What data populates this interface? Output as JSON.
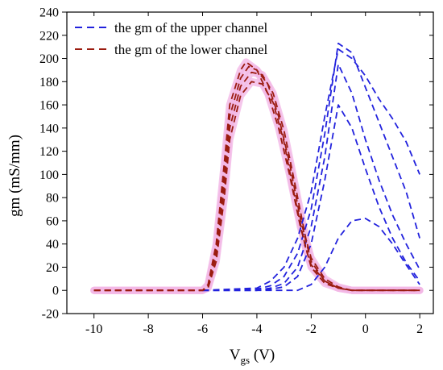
{
  "chart_data": {
    "type": "line",
    "title": "",
    "xlabel_main": "V",
    "xlabel_sub": "gs",
    "xlabel_unit": " (V)",
    "ylabel": "gm (mS/mm)",
    "xlim": [
      -11,
      2.5
    ],
    "ylim": [
      -20,
      240
    ],
    "xticks": [
      -10,
      -8,
      -6,
      -4,
      -2,
      0,
      2
    ],
    "yticks": [
      -20,
      0,
      20,
      40,
      60,
      80,
      100,
      120,
      140,
      160,
      180,
      200,
      220,
      240
    ],
    "grid": false,
    "legend_position": "top-center",
    "colors": {
      "upper": "#2222dd",
      "lower": "#9b1c10",
      "halo": "#f2b8e6"
    },
    "series": [
      {
        "name": "the gm of the upper channel",
        "group": "upper",
        "in_legend": true,
        "x": [
          -6,
          -4,
          -3.5,
          -3,
          -2.5,
          -2,
          -1.5,
          -1,
          -0.5,
          0,
          0.5,
          1,
          1.5,
          2
        ],
        "y": [
          0,
          2,
          8,
          20,
          45,
          85,
          150,
          208,
          200,
          185,
          165,
          148,
          128,
          100
        ]
      },
      {
        "name": "",
        "group": "upper",
        "in_legend": false,
        "x": [
          -6,
          -4,
          -3.5,
          -3,
          -2.5,
          -2,
          -1.5,
          -1,
          -0.5,
          0,
          0.5,
          1,
          1.5,
          2
        ],
        "y": [
          0,
          1,
          4,
          12,
          32,
          70,
          135,
          213,
          205,
          175,
          145,
          115,
          85,
          45
        ]
      },
      {
        "name": "",
        "group": "upper",
        "in_legend": false,
        "x": [
          -6,
          -4,
          -3.5,
          -3,
          -2.5,
          -2,
          -1.5,
          -1,
          -0.5,
          0,
          0.5,
          1,
          1.5,
          2
        ],
        "y": [
          0,
          0,
          2,
          6,
          20,
          55,
          115,
          195,
          170,
          130,
          95,
          65,
          40,
          18
        ]
      },
      {
        "name": "",
        "group": "upper",
        "in_legend": false,
        "x": [
          -6,
          -4,
          -3.5,
          -3,
          -2.5,
          -2,
          -1.5,
          -1,
          -0.5,
          0,
          0.5,
          1,
          1.5,
          2
        ],
        "y": [
          0,
          0,
          1,
          3,
          12,
          40,
          95,
          160,
          140,
          105,
          72,
          45,
          24,
          8
        ]
      },
      {
        "name": "",
        "group": "upper",
        "in_legend": false,
        "x": [
          -6,
          -3,
          -2.5,
          -2,
          -1.5,
          -1,
          -0.5,
          0,
          0.5,
          1,
          1.5,
          2
        ],
        "y": [
          0,
          0,
          0,
          5,
          20,
          45,
          60,
          62,
          55,
          40,
          22,
          5
        ]
      },
      {
        "name": "the gm of the lower channel",
        "group": "lower",
        "in_legend": true,
        "x": [
          -10,
          -6,
          -5.8,
          -5.5,
          -5.2,
          -5,
          -4.6,
          -4.4,
          -4,
          -3.6,
          -3.2,
          -2.8,
          -2.4,
          -2,
          -1.5,
          -1,
          -0.5,
          0,
          2
        ],
        "y": [
          0,
          0,
          5,
          40,
          110,
          160,
          190,
          197,
          190,
          170,
          140,
          100,
          55,
          20,
          6,
          2,
          0,
          0,
          0
        ]
      },
      {
        "name": "",
        "group": "lower",
        "in_legend": false,
        "x": [
          -10,
          -6,
          -5.8,
          -5.5,
          -5.2,
          -5,
          -4.6,
          -4.3,
          -4,
          -3.6,
          -3.2,
          -2.8,
          -2.4,
          -2,
          -1.5,
          -1,
          -0.5,
          0,
          2
        ],
        "y": [
          0,
          0,
          4,
          35,
          100,
          150,
          183,
          193,
          190,
          178,
          150,
          110,
          62,
          25,
          8,
          2,
          0,
          0,
          0
        ]
      },
      {
        "name": "",
        "group": "lower",
        "in_legend": false,
        "x": [
          -10,
          -6,
          -5.8,
          -5.5,
          -5.2,
          -5,
          -4.6,
          -4.2,
          -3.8,
          -3.4,
          -3,
          -2.6,
          -2.2,
          -2,
          -1.5,
          -1,
          -0.5,
          0,
          2
        ],
        "y": [
          0,
          0,
          3,
          30,
          90,
          140,
          176,
          188,
          186,
          170,
          138,
          92,
          45,
          28,
          10,
          3,
          0,
          0,
          0
        ]
      },
      {
        "name": "",
        "group": "lower",
        "in_legend": false,
        "x": [
          -10,
          -6,
          -5.8,
          -5.5,
          -5.2,
          -5,
          -4.6,
          -4.2,
          -3.8,
          -3.4,
          -3,
          -2.6,
          -2.2,
          -2,
          -1.5,
          -1,
          -0.5,
          0,
          2
        ],
        "y": [
          0,
          0,
          2,
          25,
          80,
          130,
          168,
          180,
          178,
          162,
          128,
          80,
          36,
          22,
          8,
          2,
          0,
          0,
          0
        ]
      }
    ]
  }
}
